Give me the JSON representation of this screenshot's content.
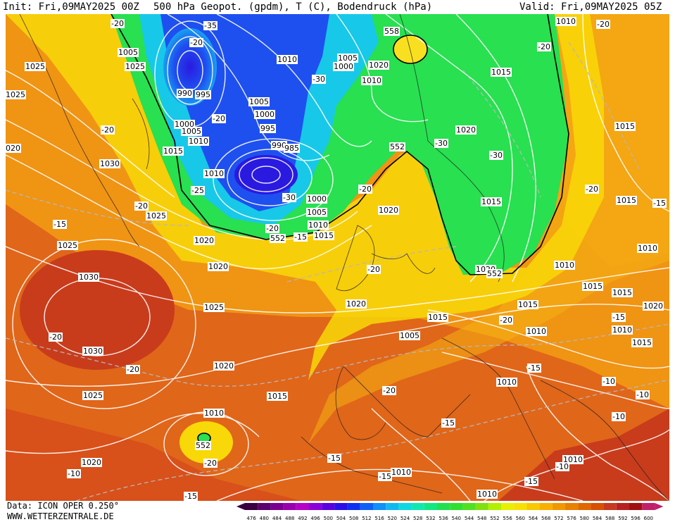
{
  "header": {
    "init": "Init: Fri,09MAY2025 00Z",
    "title": "500 hPa Geopot. (gpdm), T (C), Bodendruck (hPa)",
    "valid": "Valid: Fri,09MAY2025 05Z"
  },
  "footer": {
    "data_source": "Data: ICON OPER 0.250°",
    "website": "WWW.WETTERZENTRALE.DE"
  },
  "legend": {
    "values": [
      "476",
      "480",
      "484",
      "488",
      "492",
      "496",
      "500",
      "504",
      "508",
      "512",
      "516",
      "520",
      "524",
      "528",
      "532",
      "536",
      "540",
      "544",
      "548",
      "552",
      "556",
      "560",
      "564",
      "568",
      "572",
      "576",
      "580",
      "584",
      "588",
      "592",
      "596",
      "600"
    ],
    "colors": [
      "#3a0040",
      "#5a0070",
      "#7a0090",
      "#9a00b0",
      "#b400c8",
      "#8a00d8",
      "#5a00e0",
      "#2a10e8",
      "#1030f0",
      "#1060f8",
      "#1090f8",
      "#10b8f0",
      "#10d8e0",
      "#10e8b0",
      "#10e880",
      "#20e050",
      "#30e030",
      "#50e020",
      "#80e010",
      "#b0f000",
      "#e8f000",
      "#f8e000",
      "#f8c800",
      "#f8b000",
      "#f09800",
      "#e88000",
      "#e06800",
      "#d85000",
      "#c83820",
      "#b82020",
      "#a01010",
      "#c0206a"
    ]
  },
  "map": {
    "colors": {
      "background": "#e06818",
      "orange": "#f29a14",
      "light_orange": "#f6b210",
      "yellow": "#f8d808",
      "green": "#28e050",
      "cyan": "#18c8e8",
      "blue": "#1e50f0",
      "dark_blue": "#2a1ae0",
      "red": "#c83c1c",
      "isobar": "#ffffff"
    },
    "pressure_labels": [
      "1005",
      "1025",
      "1025",
      "020",
      "990",
      "995",
      "1000",
      "1005",
      "1010",
      "1015",
      "1010",
      "1030",
      "1025",
      "1020",
      "1025",
      "1020",
      "1030",
      "1025",
      "1030",
      "1020",
      "1025",
      "1020",
      "1015",
      "1010",
      "1020",
      "1015",
      "1010",
      "1005",
      "1000",
      "995",
      "990",
      "985",
      "1000",
      "1005",
      "1010",
      "1015",
      "1010",
      "1005",
      "1000",
      "1020",
      "1015",
      "1020",
      "1020",
      "1020",
      "1015",
      "1015",
      "1015",
      "1010",
      "1015",
      "1010",
      "1015",
      "1010",
      "1010",
      "1010",
      "1015",
      "1020",
      "1010",
      "1010",
      "1025",
      "1015",
      "1010",
      "1005",
      "1010"
    ],
    "temp_labels": [
      "-20",
      "-35",
      "-20",
      "-20",
      "-15",
      "-20",
      "-20",
      "-25",
      "-20",
      "-30",
      "-20",
      "-30",
      "-20",
      "-20",
      "-30",
      "-20",
      "-30",
      "-20",
      "-15",
      "-20",
      "-20",
      "-20",
      "-20",
      "-15",
      "-15",
      "-20",
      "-15",
      "-15",
      "-15",
      "-10",
      "-15",
      "-10",
      "-10",
      "-15",
      "-10",
      "-10",
      "-15"
    ],
    "geopot_labels": [
      "558",
      "552",
      "552",
      "552",
      "552",
      "552"
    ]
  }
}
